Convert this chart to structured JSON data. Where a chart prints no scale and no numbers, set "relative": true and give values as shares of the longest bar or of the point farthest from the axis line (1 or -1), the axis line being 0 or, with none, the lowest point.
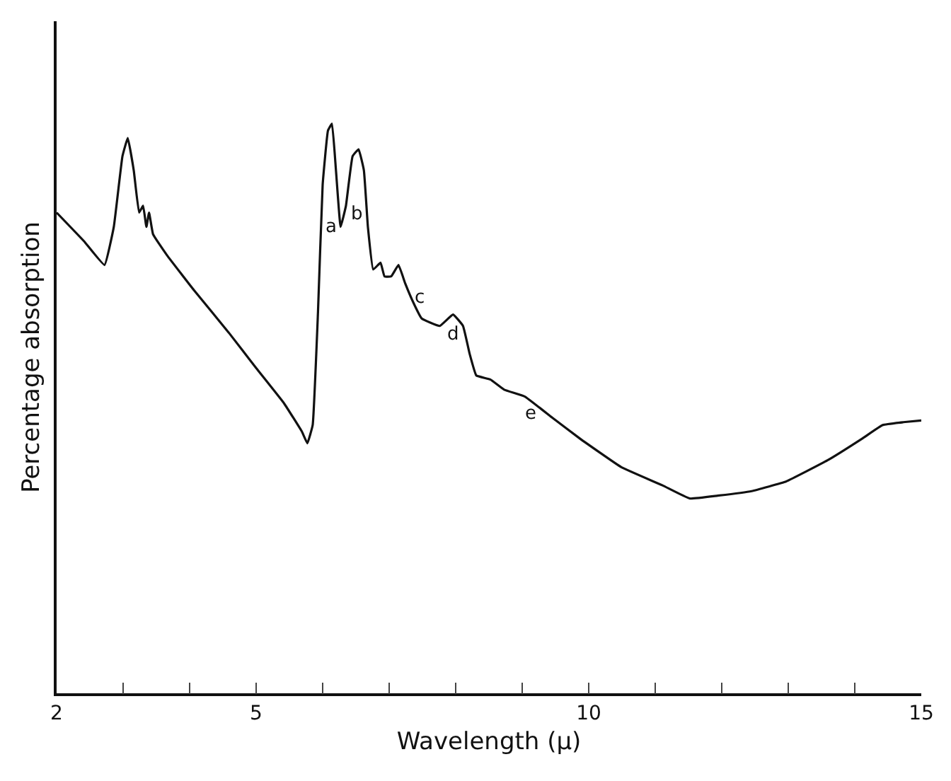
{
  "chart_data": {
    "type": "line",
    "relative": true,
    "xlabel": "Wavelength (μ)",
    "ylabel": "Percentage absorption",
    "xlim": [
      2,
      15
    ],
    "xticks": [
      2,
      {
        "value": 3,
        "label": null
      },
      {
        "value": 4,
        "label": null
      },
      5,
      {
        "value": 6,
        "label": null
      },
      {
        "value": 7,
        "label": null
      },
      {
        "value": 8,
        "label": null
      },
      {
        "value": 9,
        "label": null
      },
      10,
      {
        "value": 11,
        "label": null
      },
      {
        "value": 12,
        "label": null
      },
      {
        "value": 13,
        "label": null
      },
      {
        "value": 14,
        "label": null
      },
      15
    ],
    "marker": "none",
    "line_style": "solid",
    "series": [
      {
        "color": "#111111",
        "x": [
          2.0,
          2.41,
          2.72,
          2.86,
          2.99,
          3.07,
          3.16,
          3.24,
          3.3,
          3.35,
          3.39,
          3.45,
          3.66,
          4.07,
          4.59,
          5.0,
          5.42,
          5.69,
          5.77,
          5.85,
          5.93,
          6.0,
          6.08,
          6.14,
          6.2,
          6.27,
          6.35,
          6.45,
          6.54,
          6.62,
          6.68,
          6.76,
          6.87,
          6.93,
          7.03,
          7.14,
          7.24,
          7.38,
          7.49,
          7.76,
          7.96,
          8.11,
          8.21,
          8.31,
          8.52,
          8.73,
          9.04,
          9.45,
          9.87,
          10.49,
          11.11,
          11.52,
          11.94,
          12.45,
          12.97,
          13.59,
          14.11,
          14.42,
          14.73,
          15.0
        ],
        "values": [
          0.844,
          0.794,
          0.752,
          0.819,
          0.943,
          0.975,
          0.918,
          0.844,
          0.856,
          0.819,
          0.844,
          0.806,
          0.769,
          0.707,
          0.633,
          0.571,
          0.509,
          0.459,
          0.439,
          0.471,
          0.67,
          0.893,
          0.988,
          1.0,
          0.918,
          0.819,
          0.856,
          0.943,
          0.955,
          0.918,
          0.819,
          0.744,
          0.756,
          0.732,
          0.732,
          0.752,
          0.72,
          0.682,
          0.658,
          0.645,
          0.665,
          0.645,
          0.596,
          0.558,
          0.551,
          0.533,
          0.521,
          0.484,
          0.447,
          0.397,
          0.365,
          0.342,
          0.347,
          0.355,
          0.372,
          0.409,
          0.447,
          0.471,
          0.476,
          0.479
        ]
      }
    ],
    "annotations": [
      {
        "text": "a",
        "x": 6.27,
        "y": 0.819
      },
      {
        "text": "b",
        "x": 6.35,
        "y": 0.856
      },
      {
        "text": "c",
        "x": 7.24,
        "y": 0.72
      },
      {
        "text": "d",
        "x": 7.96,
        "y": 0.665
      },
      {
        "text": "e",
        "x": 9.04,
        "y": 0.521
      }
    ]
  }
}
